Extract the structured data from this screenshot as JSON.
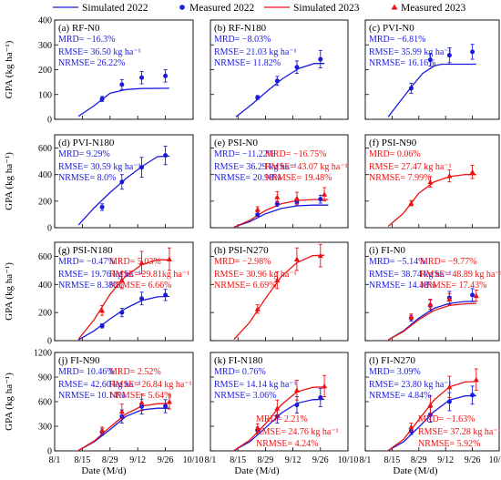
{
  "legend": {
    "sim2022": "Simulated 2022",
    "meas2022": "Measured 2022",
    "sim2023": "Simulated 2023",
    "meas2023": "Measured 2023"
  },
  "colors": {
    "y2022": "#1a1adc",
    "y2023": "#ee1111",
    "axis": "#000000"
  },
  "x_axis": {
    "label": "Date (M/d)",
    "ticks": [
      "8/1",
      "8/15",
      "8/29",
      "9/12",
      "9/26",
      "10/10"
    ],
    "tick_days": [
      0,
      14,
      28,
      42,
      56,
      70
    ],
    "range": [
      0,
      70
    ]
  },
  "y_axis_label": "GPA (kg ha⁻¹)",
  "rows": [
    {
      "ylim": [
        0,
        400
      ],
      "ticks": [
        "0",
        "100",
        "200",
        "300",
        "400"
      ],
      "tick_values": [
        0,
        100,
        200,
        300,
        400
      ]
    },
    {
      "ylim": [
        0,
        700
      ],
      "ticks": [
        "0",
        "200",
        "400",
        "600"
      ],
      "tick_values": [
        0,
        200,
        400,
        600
      ]
    },
    {
      "ylim": [
        0,
        700
      ],
      "ticks": [
        "0",
        "200",
        "400",
        "600"
      ],
      "tick_values": [
        0,
        200,
        400,
        600
      ]
    },
    {
      "ylim": [
        0,
        1200
      ],
      "ticks": [
        "0",
        "300",
        "600",
        "900",
        "1200"
      ],
      "tick_values": [
        0,
        300,
        600,
        900,
        1200
      ]
    }
  ],
  "chart_data": [
    {
      "type": "line",
      "title": "(a) RF-N0",
      "series": [
        {
          "name": "Simulated 2022",
          "year": 2022,
          "kind": "sim",
          "x": [
            12,
            20,
            28,
            36,
            44,
            58
          ],
          "y": [
            12,
            55,
            105,
            120,
            124,
            125
          ]
        },
        {
          "name": "Measured 2022",
          "year": 2022,
          "kind": "meas",
          "x": [
            24,
            34,
            44,
            56
          ],
          "y": [
            82,
            140,
            168,
            175
          ],
          "err": [
            10,
            20,
            25,
            25
          ]
        }
      ],
      "stats": [
        {
          "year": 2022,
          "lines": [
            "MRD= −16.3%",
            "RMSE= 36.50 kg ha⁻¹",
            "NRMSE= 26.22%"
          ]
        }
      ]
    },
    {
      "type": "line",
      "title": "(b) RF-N180",
      "series": [
        {
          "name": "Simulated 2022",
          "year": 2022,
          "kind": "sim",
          "x": [
            13,
            21,
            29,
            37,
            45,
            53,
            58
          ],
          "y": [
            10,
            60,
            115,
            165,
            205,
            225,
            225
          ]
        },
        {
          "name": "Measured 2022",
          "year": 2022,
          "kind": "meas",
          "x": [
            24,
            34,
            44,
            56
          ],
          "y": [
            88,
            155,
            210,
            242
          ],
          "err": [
            8,
            18,
            25,
            35
          ]
        }
      ],
      "stats": [
        {
          "year": 2022,
          "lines": [
            "MRD= −8.03%",
            "RMSE= 21.03 kg ha⁻¹",
            "NRMSE= 11.82%"
          ]
        }
      ]
    },
    {
      "type": "line",
      "title": "(c) PVI-N0",
      "series": [
        {
          "name": "Simulated 2022",
          "year": 2022,
          "kind": "sim",
          "x": [
            12,
            18,
            24,
            30,
            36,
            40,
            58
          ],
          "y": [
            10,
            70,
            130,
            185,
            215,
            222,
            222
          ]
        },
        {
          "name": "Measured 2022",
          "year": 2022,
          "kind": "meas",
          "x": [
            24,
            34,
            44,
            56
          ],
          "y": [
            125,
            240,
            258,
            272
          ],
          "err": [
            20,
            25,
            30,
            30
          ]
        }
      ],
      "stats": [
        {
          "year": 2022,
          "lines": [
            "MRD= −6.81%",
            "RMSE= 35.99 kg ha⁻¹",
            "NRMSE= 16.16%"
          ]
        }
      ]
    },
    {
      "type": "line",
      "title": "(d) PVI-N180",
      "series": [
        {
          "name": "Simulated 2022",
          "year": 2022,
          "kind": "sim",
          "x": [
            12,
            20,
            28,
            36,
            44,
            52,
            58
          ],
          "y": [
            20,
            150,
            265,
            370,
            460,
            535,
            540
          ]
        },
        {
          "name": "Measured 2022",
          "year": 2022,
          "kind": "meas",
          "x": [
            24,
            34,
            44,
            56
          ],
          "y": [
            155,
            345,
            455,
            545
          ],
          "err": [
            25,
            55,
            75,
            70
          ]
        }
      ],
      "stats": [
        {
          "year": 2022,
          "lines": [
            "MRD= 9.29%",
            "RMSE= 30.59 kg ha⁻¹",
            "NRMSE= 8.0%"
          ]
        }
      ]
    },
    {
      "type": "line",
      "title": "(e) PSI-N0",
      "series": [
        {
          "name": "Simulated 2022",
          "year": 2022,
          "kind": "sim",
          "x": [
            12,
            20,
            28,
            36,
            44,
            52,
            60
          ],
          "y": [
            5,
            45,
            105,
            145,
            165,
            170,
            170
          ]
        },
        {
          "name": "Simulated 2023",
          "year": 2023,
          "kind": "sim",
          "x": [
            12,
            20,
            28,
            36,
            44,
            52,
            60
          ],
          "y": [
            5,
            55,
            130,
            180,
            205,
            212,
            212
          ]
        },
        {
          "name": "Measured 2022",
          "year": 2022,
          "kind": "meas",
          "x": [
            24,
            34,
            44,
            56
          ],
          "y": [
            98,
            180,
            192,
            215
          ],
          "err": [
            10,
            20,
            25,
            30
          ]
        },
        {
          "name": "Measured 2023",
          "year": 2023,
          "kind": "meas",
          "x": [
            24,
            34,
            44,
            58
          ],
          "y": [
            138,
            232,
            222,
            252
          ],
          "err": [
            20,
            40,
            45,
            50
          ]
        }
      ],
      "stats": [
        {
          "year": 2022,
          "lines": [
            "MRD= −11.22%",
            "RMSE= 36.29 kg ha⁻¹",
            "NRMSE= 20.98%"
          ]
        },
        {
          "year": 2023,
          "lines": [
            "MRD= −16.75%",
            "RMSE= 43.07 kg ha⁻¹",
            "NRMSE= 19.48%"
          ]
        }
      ]
    },
    {
      "type": "line",
      "title": "(f) PSI-N90",
      "series": [
        {
          "name": "Simulated 2023",
          "year": 2023,
          "kind": "sim",
          "x": [
            12,
            20,
            28,
            36,
            44,
            52,
            58
          ],
          "y": [
            10,
            110,
            260,
            345,
            385,
            400,
            400
          ]
        },
        {
          "name": "Measured 2023",
          "year": 2023,
          "kind": "meas",
          "x": [
            24,
            34,
            44,
            56
          ],
          "y": [
            185,
            345,
            390,
            420
          ],
          "err": [
            20,
            40,
            45,
            50
          ]
        }
      ],
      "stats": [
        {
          "year": 2023,
          "lines": [
            "MRD= 0.06%",
            "RMSE= 27.47 kg ha⁻¹",
            "NRMSE= 7.99%"
          ]
        }
      ]
    },
    {
      "type": "line",
      "title": "(g) PSI-N180",
      "series": [
        {
          "name": "Simulated 2022",
          "year": 2022,
          "kind": "sim",
          "x": [
            12,
            20,
            28,
            36,
            44,
            52,
            58
          ],
          "y": [
            5,
            70,
            155,
            230,
            285,
            312,
            315
          ]
        },
        {
          "name": "Simulated 2023",
          "year": 2023,
          "kind": "sim",
          "x": [
            12,
            20,
            28,
            36,
            44,
            52,
            58
          ],
          "y": [
            10,
            150,
            330,
            460,
            540,
            575,
            575
          ]
        },
        {
          "name": "Measured 2022",
          "year": 2022,
          "kind": "meas",
          "x": [
            24,
            34,
            44,
            56
          ],
          "y": [
            105,
            200,
            300,
            325
          ],
          "err": [
            15,
            30,
            45,
            40
          ]
        },
        {
          "name": "Measured 2023",
          "year": 2023,
          "kind": "meas",
          "x": [
            24,
            34,
            44,
            58
          ],
          "y": [
            215,
            430,
            555,
            580
          ],
          "err": [
            35,
            60,
            80,
            80
          ]
        }
      ],
      "stats": [
        {
          "year": 2022,
          "lines": [
            "MRD= −0.47%",
            "RMSE= 19.76 kg ha⁻¹",
            "NRMSE= 8.38%"
          ]
        },
        {
          "year": 2023,
          "lines": [
            "MRD= 5.03%",
            "RMSE= 29.81kg ha⁻¹",
            "NRMSE= 6.66%"
          ]
        }
      ]
    },
    {
      "type": "line",
      "title": "(h) PSI-N270",
      "series": [
        {
          "name": "Simulated 2023",
          "year": 2023,
          "kind": "sim",
          "x": [
            12,
            20,
            28,
            36,
            44,
            52,
            58
          ],
          "y": [
            10,
            130,
            300,
            455,
            555,
            605,
            608
          ]
        },
        {
          "name": "Measured 2023",
          "year": 2023,
          "kind": "meas",
          "x": [
            24,
            34,
            44,
            56
          ],
          "y": [
            225,
            430,
            580,
            605
          ],
          "err": [
            30,
            60,
            80,
            80
          ]
        }
      ],
      "stats": [
        {
          "year": 2023,
          "lines": [
            "MRD= −2.98%",
            "RMSE= 30.96 kg ha⁻¹",
            "NRMSE= 6.69%"
          ]
        }
      ]
    },
    {
      "type": "line",
      "title": "(i) FI-N0",
      "series": [
        {
          "name": "Simulated 2022",
          "year": 2022,
          "kind": "sim",
          "x": [
            12,
            20,
            28,
            36,
            44,
            52,
            58
          ],
          "y": [
            5,
            70,
            160,
            230,
            265,
            278,
            280
          ]
        },
        {
          "name": "Simulated 2023",
          "year": 2023,
          "kind": "sim",
          "x": [
            12,
            20,
            28,
            36,
            44,
            52,
            58
          ],
          "y": [
            5,
            65,
            150,
            215,
            250,
            262,
            265
          ]
        },
        {
          "name": "Measured 2022",
          "year": 2022,
          "kind": "meas",
          "x": [
            24,
            34,
            44,
            56
          ],
          "y": [
            160,
            250,
            305,
            325
          ],
          "err": [
            20,
            40,
            45,
            45
          ]
        },
        {
          "name": "Measured 2023",
          "year": 2023,
          "kind": "meas",
          "x": [
            24,
            34,
            44,
            58
          ],
          "y": [
            170,
            260,
            295,
            320
          ],
          "err": [
            20,
            35,
            40,
            40
          ]
        }
      ],
      "stats": [
        {
          "year": 2022,
          "lines": [
            "MRD= −5.14%",
            "RMSE= 38.74 kg ha⁻¹",
            "NRMSE= 14.48%"
          ]
        },
        {
          "year": 2023,
          "lines": [
            "MRD= −9.77%",
            "RMSE= 48.89 kg ha⁻¹",
            "NRMSE= 17.43%"
          ]
        }
      ]
    },
    {
      "type": "line",
      "title": "(j) FI-N90",
      "series": [
        {
          "name": "Simulated 2022",
          "year": 2022,
          "kind": "sim",
          "x": [
            12,
            20,
            28,
            36,
            44,
            52,
            58
          ],
          "y": [
            5,
            110,
            260,
            420,
            500,
            520,
            520
          ]
        },
        {
          "name": "Simulated 2023",
          "year": 2023,
          "kind": "sim",
          "x": [
            12,
            20,
            28,
            36,
            44,
            52,
            58
          ],
          "y": [
            5,
            120,
            290,
            450,
            545,
            575,
            580
          ]
        },
        {
          "name": "Measured 2022",
          "year": 2022,
          "kind": "meas",
          "x": [
            24,
            34,
            44,
            56
          ],
          "y": [
            230,
            420,
            540,
            545
          ],
          "err": [
            40,
            80,
            90,
            80
          ]
        },
        {
          "name": "Measured 2023",
          "year": 2023,
          "kind": "meas",
          "x": [
            24,
            34,
            44,
            58
          ],
          "y": [
            250,
            480,
            590,
            600
          ],
          "err": [
            40,
            90,
            100,
            90
          ]
        }
      ],
      "stats": [
        {
          "year": 2022,
          "lines": [
            "MRD= 10.46%",
            "RMSE= 42.60 kg ha⁻¹",
            "NRMSE= 10.14%"
          ]
        },
        {
          "year": 2023,
          "lines": [
            "MRD= 2.52%",
            "RMSE= 26.84 kg ha⁻¹",
            "NRMSE= 5.64%"
          ]
        }
      ]
    },
    {
      "type": "line",
      "title": "(k) FI-N180",
      "series": [
        {
          "name": "Simulated 2022",
          "year": 2022,
          "kind": "sim",
          "x": [
            12,
            20,
            28,
            36,
            44,
            52,
            58
          ],
          "y": [
            5,
            110,
            280,
            460,
            580,
            625,
            630
          ]
        },
        {
          "name": "Simulated 2023",
          "year": 2023,
          "kind": "sim",
          "x": [
            12,
            20,
            28,
            36,
            44,
            52,
            58
          ],
          "y": [
            5,
            130,
            330,
            560,
            720,
            775,
            780
          ]
        },
        {
          "name": "Measured 2022",
          "year": 2022,
          "kind": "meas",
          "x": [
            24,
            34,
            44,
            56
          ],
          "y": [
            250,
            420,
            560,
            650
          ],
          "err": [
            40,
            80,
            100,
            110
          ]
        },
        {
          "name": "Measured 2023",
          "year": 2023,
          "kind": "meas",
          "x": [
            24,
            34,
            44,
            58
          ],
          "y": [
            280,
            520,
            740,
            790
          ],
          "err": [
            50,
            100,
            120,
            130
          ]
        }
      ],
      "stats": [
        {
          "year": 2022,
          "lines": [
            "MRD= 0.76%",
            "RMSE= 14.14 kg ha⁻¹",
            "NRMSE= 3.06%"
          ]
        },
        {
          "year": 2023,
          "lines": [
            "MRD= 2.21%",
            "RMSE= 24.76 kg ha⁻¹",
            "NRMSE= 4.24%"
          ]
        }
      ]
    },
    {
      "type": "line",
      "title": "(l) FI-N270",
      "series": [
        {
          "name": "Simulated 2022",
          "year": 2022,
          "kind": "sim",
          "x": [
            12,
            20,
            28,
            36,
            44,
            52,
            58
          ],
          "y": [
            5,
            110,
            290,
            480,
            620,
            670,
            675
          ]
        },
        {
          "name": "Simulated 2023",
          "year": 2023,
          "kind": "sim",
          "x": [
            12,
            20,
            28,
            36,
            44,
            52,
            58
          ],
          "y": [
            5,
            140,
            380,
            620,
            780,
            840,
            845
          ]
        },
        {
          "name": "Measured 2022",
          "year": 2022,
          "kind": "meas",
          "x": [
            24,
            34,
            44,
            56
          ],
          "y": [
            240,
            440,
            600,
            680
          ],
          "err": [
            40,
            90,
            110,
            110
          ]
        },
        {
          "name": "Measured 2023",
          "year": 2023,
          "kind": "meas",
          "x": [
            24,
            34,
            44,
            58
          ],
          "y": [
            290,
            560,
            780,
            870
          ],
          "err": [
            50,
            110,
            130,
            130
          ]
        }
      ],
      "stats": [
        {
          "year": 2022,
          "lines": [
            "MRD= 3.09%",
            "RMSE= 23.80 kg ha⁻¹",
            "NRMSE= 4.84%"
          ]
        },
        {
          "year": 2023,
          "lines": [
            "MRD= −1.63%",
            "RMSE= 37.28 kg ha⁻¹",
            "NRMSE= 5.92%"
          ]
        }
      ]
    }
  ]
}
